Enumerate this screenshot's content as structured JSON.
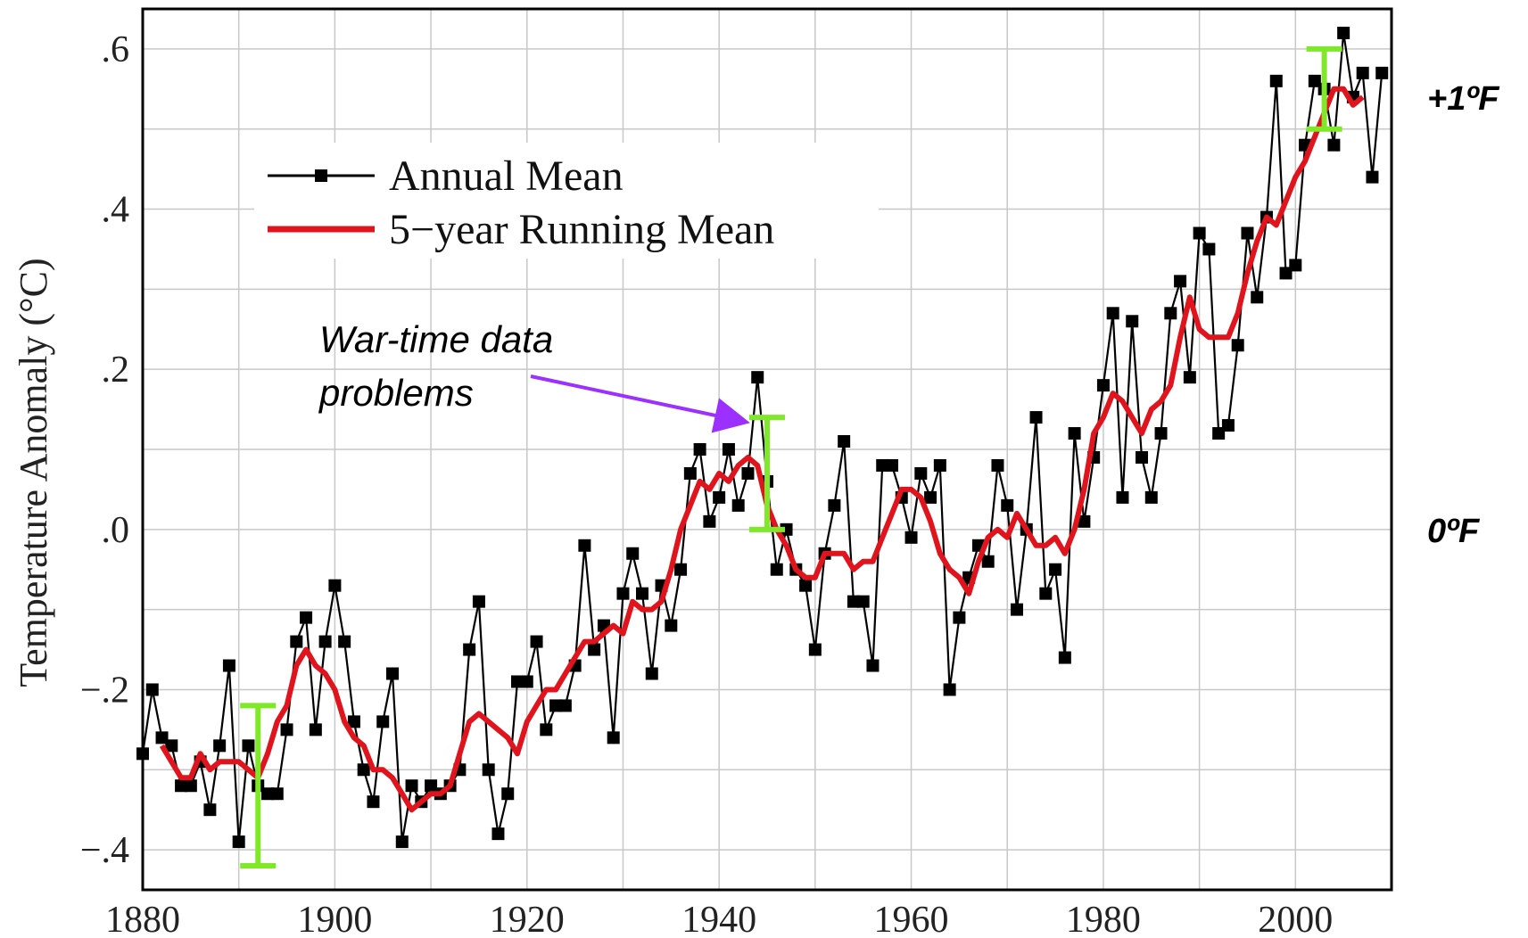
{
  "chart_data": {
    "type": "line",
    "ylabel": "Temperature Anomaly (°C)",
    "xlim": [
      1880,
      2010
    ],
    "ylim": [
      -0.45,
      0.65
    ],
    "x_ticks": [
      1880,
      1900,
      1920,
      1940,
      1960,
      1980,
      2000
    ],
    "x_tick_labels": [
      "1880",
      "1900",
      "1920",
      "1940",
      "1960",
      "1980",
      "2000"
    ],
    "y_ticks": [
      -0.4,
      -0.2,
      0.0,
      0.2,
      0.4,
      0.6
    ],
    "y_tick_labels": [
      "−.4",
      "−.2",
      ".0",
      ".2",
      ".4",
      ".6"
    ],
    "grid": true,
    "legend_position": "top-left",
    "series": [
      {
        "name": "Annual Mean",
        "color": "#000000",
        "marker": "square",
        "x": [
          1880,
          1881,
          1882,
          1883,
          1884,
          1885,
          1886,
          1887,
          1888,
          1889,
          1890,
          1891,
          1892,
          1893,
          1894,
          1895,
          1896,
          1897,
          1898,
          1899,
          1900,
          1901,
          1902,
          1903,
          1904,
          1905,
          1906,
          1907,
          1908,
          1909,
          1910,
          1911,
          1912,
          1913,
          1914,
          1915,
          1916,
          1917,
          1918,
          1919,
          1920,
          1921,
          1922,
          1923,
          1924,
          1925,
          1926,
          1927,
          1928,
          1929,
          1930,
          1931,
          1932,
          1933,
          1934,
          1935,
          1936,
          1937,
          1938,
          1939,
          1940,
          1941,
          1942,
          1943,
          1944,
          1945,
          1946,
          1947,
          1948,
          1949,
          1950,
          1951,
          1952,
          1953,
          1954,
          1955,
          1956,
          1957,
          1958,
          1959,
          1960,
          1961,
          1962,
          1963,
          1964,
          1965,
          1966,
          1967,
          1968,
          1969,
          1970,
          1971,
          1972,
          1973,
          1974,
          1975,
          1976,
          1977,
          1978,
          1979,
          1980,
          1981,
          1982,
          1983,
          1984,
          1985,
          1986,
          1987,
          1988,
          1989,
          1990,
          1991,
          1992,
          1993,
          1994,
          1995,
          1996,
          1997,
          1998,
          1999,
          2000,
          2001,
          2002,
          2003,
          2004,
          2005,
          2006,
          2007,
          2008,
          2009
        ],
        "y": [
          -0.28,
          -0.2,
          -0.26,
          -0.27,
          -0.32,
          -0.32,
          -0.29,
          -0.35,
          -0.27,
          -0.17,
          -0.39,
          -0.27,
          -0.32,
          -0.33,
          -0.33,
          -0.25,
          -0.14,
          -0.11,
          -0.25,
          -0.14,
          -0.07,
          -0.14,
          -0.24,
          -0.3,
          -0.34,
          -0.24,
          -0.18,
          -0.39,
          -0.32,
          -0.34,
          -0.32,
          -0.33,
          -0.32,
          -0.3,
          -0.15,
          -0.09,
          -0.3,
          -0.38,
          -0.33,
          -0.19,
          -0.19,
          -0.14,
          -0.25,
          -0.22,
          -0.22,
          -0.17,
          -0.02,
          -0.15,
          -0.12,
          -0.26,
          -0.08,
          -0.03,
          -0.08,
          -0.18,
          -0.07,
          -0.12,
          -0.05,
          0.07,
          0.1,
          0.01,
          0.04,
          0.1,
          0.03,
          0.07,
          0.19,
          0.06,
          -0.05,
          0.0,
          -0.05,
          -0.07,
          -0.15,
          -0.03,
          0.03,
          0.11,
          -0.09,
          -0.09,
          -0.17,
          0.08,
          0.08,
          0.04,
          -0.01,
          0.07,
          0.04,
          0.08,
          -0.2,
          -0.11,
          -0.06,
          -0.02,
          -0.04,
          0.08,
          0.03,
          -0.1,
          0.0,
          0.14,
          -0.08,
          -0.05,
          -0.16,
          0.12,
          0.01,
          0.09,
          0.18,
          0.27,
          0.04,
          0.26,
          0.09,
          0.04,
          0.12,
          0.27,
          0.31,
          0.19,
          0.37,
          0.35,
          0.12,
          0.13,
          0.23,
          0.37,
          0.29,
          0.39,
          0.56,
          0.32,
          0.33,
          0.48,
          0.56,
          0.55,
          0.48,
          0.62,
          0.54,
          0.57,
          0.44,
          0.57
        ]
      },
      {
        "name": "5−year Running Mean",
        "color": "#e0141c",
        "x": [
          1882,
          1883,
          1884,
          1885,
          1886,
          1887,
          1888,
          1889,
          1890,
          1891,
          1892,
          1893,
          1894,
          1895,
          1896,
          1897,
          1898,
          1899,
          1900,
          1901,
          1902,
          1903,
          1904,
          1905,
          1906,
          1907,
          1908,
          1909,
          1910,
          1911,
          1912,
          1913,
          1914,
          1915,
          1916,
          1917,
          1918,
          1919,
          1920,
          1921,
          1922,
          1923,
          1924,
          1925,
          1926,
          1927,
          1928,
          1929,
          1930,
          1931,
          1932,
          1933,
          1934,
          1935,
          1936,
          1937,
          1938,
          1939,
          1940,
          1941,
          1942,
          1943,
          1944,
          1945,
          1946,
          1947,
          1948,
          1949,
          1950,
          1951,
          1952,
          1953,
          1954,
          1955,
          1956,
          1957,
          1958,
          1959,
          1960,
          1961,
          1962,
          1963,
          1964,
          1965,
          1966,
          1967,
          1968,
          1969,
          1970,
          1971,
          1972,
          1973,
          1974,
          1975,
          1976,
          1977,
          1978,
          1979,
          1980,
          1981,
          1982,
          1983,
          1984,
          1985,
          1986,
          1987,
          1988,
          1989,
          1990,
          1991,
          1992,
          1993,
          1994,
          1995,
          1996,
          1997,
          1998,
          1999,
          2000,
          2001,
          2002,
          2003,
          2004,
          2005,
          2006,
          2007
        ],
        "y": [
          -0.27,
          -0.29,
          -0.31,
          -0.31,
          -0.28,
          -0.3,
          -0.29,
          -0.29,
          -0.29,
          -0.3,
          -0.31,
          -0.28,
          -0.24,
          -0.22,
          -0.17,
          -0.15,
          -0.17,
          -0.18,
          -0.2,
          -0.24,
          -0.26,
          -0.27,
          -0.3,
          -0.3,
          -0.31,
          -0.33,
          -0.35,
          -0.34,
          -0.33,
          -0.33,
          -0.32,
          -0.28,
          -0.24,
          -0.23,
          -0.24,
          -0.25,
          -0.26,
          -0.28,
          -0.24,
          -0.22,
          -0.2,
          -0.2,
          -0.18,
          -0.16,
          -0.14,
          -0.14,
          -0.13,
          -0.12,
          -0.13,
          -0.09,
          -0.1,
          -0.1,
          -0.09,
          -0.05,
          0.0,
          0.03,
          0.06,
          0.05,
          0.07,
          0.06,
          0.08,
          0.09,
          0.08,
          0.03,
          0.0,
          -0.02,
          -0.05,
          -0.06,
          -0.06,
          -0.03,
          -0.03,
          -0.03,
          -0.05,
          -0.04,
          -0.04,
          -0.01,
          0.02,
          0.05,
          0.05,
          0.04,
          0.01,
          -0.03,
          -0.05,
          -0.06,
          -0.08,
          -0.04,
          -0.01,
          0.0,
          -0.01,
          0.02,
          0.0,
          -0.02,
          -0.02,
          -0.01,
          -0.03,
          0.0,
          0.05,
          0.12,
          0.14,
          0.17,
          0.16,
          0.14,
          0.12,
          0.15,
          0.16,
          0.18,
          0.24,
          0.29,
          0.25,
          0.24,
          0.24,
          0.24,
          0.27,
          0.32,
          0.36,
          0.39,
          0.38,
          0.41,
          0.44,
          0.46,
          0.49,
          0.52,
          0.55,
          0.55,
          0.53,
          0.54
        ]
      }
    ],
    "error_bars": [
      {
        "x": 1892,
        "low": -0.42,
        "high": -0.22,
        "color": "#7ee829"
      },
      {
        "x": 1945,
        "low": 0.0,
        "high": 0.14,
        "color": "#7ee829"
      },
      {
        "x": 2003,
        "low": 0.5,
        "high": 0.6,
        "color": "#7ee829"
      }
    ],
    "annotation": {
      "lines": [
        "War-time data",
        "problems"
      ],
      "arrow_target": {
        "x": 1942.5,
        "y": 0.135
      },
      "arrow_color": "#9b30ff"
    },
    "right_labels": [
      {
        "text": "+1ºF",
        "y": 0.54
      },
      {
        "text": "0ºF",
        "y": 0.0
      }
    ]
  }
}
